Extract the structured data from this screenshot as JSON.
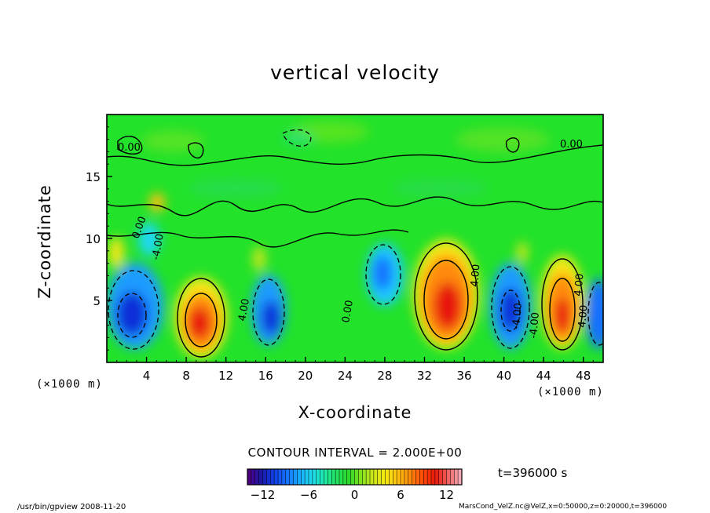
{
  "chart_data": {
    "type": "heatmap",
    "title": "vertical velocity",
    "xlabel": "X-coordinate",
    "ylabel": "Z-coordinate",
    "x_unit_label": "(×1000 m)",
    "y_unit_label": "(×1000 m)",
    "xlim": [
      0,
      50
    ],
    "ylim": [
      0,
      20
    ],
    "x_ticks": [
      4,
      8,
      12,
      16,
      20,
      24,
      28,
      32,
      36,
      40,
      44,
      48
    ],
    "y_ticks": [
      5,
      10,
      15
    ],
    "contour_interval_label": "CONTOUR INTERVAL = 2.000E+00",
    "contour_labels": [
      "0.00",
      "0.00",
      "0.00",
      "-4.00",
      "4.00",
      "4.00",
      "4.00",
      "0.00",
      "-4.00",
      "4.00",
      "-4.00"
    ],
    "colorbar": {
      "min": -14,
      "max": 14,
      "ticks": [
        -12,
        -6,
        0,
        6,
        12
      ]
    },
    "time_label": "t=396000 s",
    "cells": [
      {
        "x": 3,
        "z": 3.5,
        "value": -10
      },
      {
        "x": 9.5,
        "z": 3,
        "value": 12
      },
      {
        "x": 17,
        "z": 3,
        "value": -10
      },
      {
        "x": 27,
        "z": 7.5,
        "value": -6
      },
      {
        "x": 34,
        "z": 4.5,
        "value": 13
      },
      {
        "x": 40.5,
        "z": 4,
        "value": -11
      },
      {
        "x": 46,
        "z": 3.5,
        "value": 12
      },
      {
        "x": 49.5,
        "z": 3.5,
        "value": -8
      },
      {
        "x": 5,
        "z": 13,
        "value": 6
      }
    ]
  },
  "footer": {
    "left": "/usr/bin/gpview   2008-11-20",
    "right": "MarsCond_VelZ.nc@VelZ,x=0:50000,z=0:20000,t=396000"
  },
  "colors": {
    "background_field": "#22e22a",
    "positive_core": "#e81608",
    "negative_core": "#0f2fd8",
    "ramp": [
      "#4b0082",
      "#1a1aa8",
      "#0f3fe8",
      "#1670ff",
      "#18a8ff",
      "#1ed8f0",
      "#1ee8b0",
      "#22e260",
      "#2ad82a",
      "#80e41e",
      "#cce61a",
      "#f6e812",
      "#ffc010",
      "#ff8a0c",
      "#ff4a08",
      "#e81808",
      "#f06060",
      "#f6a8b4"
    ]
  }
}
